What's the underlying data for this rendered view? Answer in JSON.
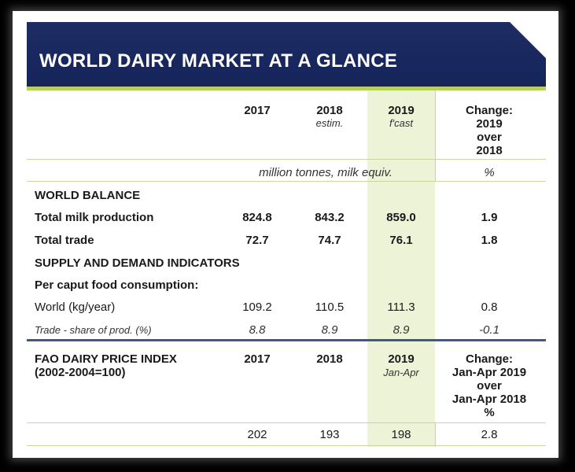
{
  "title": "WORLD DAIRY MARKET AT A GLANCE",
  "header": {
    "y2017": "2017",
    "y2018": "2018",
    "y2018_sub": "estim.",
    "y2019": "2019",
    "y2019_sub": "f'cast",
    "change": [
      "Change:",
      "2019",
      "over",
      "2018"
    ]
  },
  "units": {
    "main": "million tonnes, milk equiv.",
    "pct": "%"
  },
  "world_balance": {
    "heading": "WORLD BALANCE",
    "rows": [
      {
        "label": "Total milk production",
        "v2017": "824.8",
        "v2018": "843.2",
        "v2019": "859.0",
        "change": "1.9"
      },
      {
        "label": "Total trade",
        "v2017": "72.7",
        "v2018": "74.7",
        "v2019": "76.1",
        "change": "1.8"
      }
    ]
  },
  "supply_demand": {
    "heading": "SUPPLY AND DEMAND INDICATORS",
    "subheading": "Per caput food consumption:",
    "rows": [
      {
        "label": "World (kg/year)",
        "v2017": "109.2",
        "v2018": "110.5",
        "v2019": "111.3",
        "change": "0.8"
      },
      {
        "label": "Trade - share of prod. (%)",
        "v2017": "8.8",
        "v2018": "8.9",
        "v2019": "8.9",
        "change": "-0.1"
      }
    ]
  },
  "price_index": {
    "heading_1": "FAO DAIRY PRICE INDEX",
    "heading_2": "(2002-2004=100)",
    "y2017": "2017",
    "y2018": "2018",
    "y2019": "2019",
    "y2019_sub": "Jan-Apr",
    "change": [
      "Change:",
      "Jan-Apr 2019",
      "over",
      "Jan-Apr 2018",
      "%"
    ],
    "row": {
      "v2017": "202",
      "v2018": "193",
      "v2019": "198",
      "change": "2.8"
    }
  },
  "colors": {
    "title_bg": "#1d2d63",
    "accent_green": "#b7cf5c",
    "highlight_col": "#ecf3d7",
    "divider_blue": "#3f5a7e"
  }
}
